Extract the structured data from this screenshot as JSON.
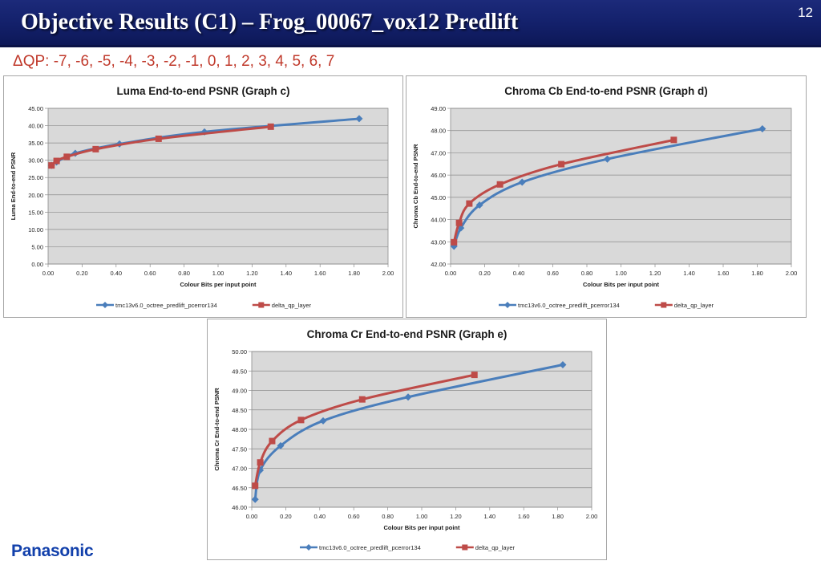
{
  "slide": {
    "title": "Objective Results (C1) – Frog_00067_vox12 Predlift",
    "number": "12",
    "subtitle": "ΔQP: -7, -6, -5, -4, -3, -2, -1, 0, 1, 2, 3, 4, 5, 6, 7",
    "logo": "Panasonic"
  },
  "colors": {
    "series1": "#4a7ebb",
    "series2": "#be4b48",
    "plot_bg": "#d9d9d9",
    "title_bar": "#13206a",
    "subtitle": "#c0392b",
    "logo": "#1240ab"
  },
  "chart_data": [
    {
      "type": "line",
      "title": "Luma End-to-end PSNR (Graph c)",
      "xlabel": "Colour  Bits per input point",
      "ylabel": "Luma End-to-end PSNR",
      "xlim": [
        0,
        2
      ],
      "ylim": [
        0,
        45
      ],
      "x_ticks": [
        "0.00",
        "0.20",
        "0.40",
        "0.60",
        "0.80",
        "1.00",
        "1.20",
        "1.40",
        "1.60",
        "1.80",
        "2.00"
      ],
      "y_ticks": [
        "0.00",
        "5.00",
        "10.00",
        "15.00",
        "20.00",
        "25.00",
        "30.00",
        "35.00",
        "40.00",
        "45.00"
      ],
      "grid": true,
      "legend": "bottom",
      "series": [
        {
          "name": "tmc13v6.0_octree_predlift_pcerror134",
          "color": "#4a7ebb",
          "marker": "diamond",
          "x": [
            0.02,
            0.05,
            0.16,
            0.42,
            0.92,
            1.83
          ],
          "y": [
            28.5,
            29.5,
            32.0,
            34.7,
            38.2,
            42.0
          ]
        },
        {
          "name": "delta_qp_layer",
          "color": "#be4b48",
          "marker": "square",
          "x": [
            0.02,
            0.05,
            0.11,
            0.28,
            0.65,
            1.31
          ],
          "y": [
            28.5,
            29.8,
            31.0,
            33.2,
            36.2,
            39.7
          ]
        }
      ]
    },
    {
      "type": "line",
      "title": "Chroma Cb End-to-end PSNR (Graph d)",
      "xlabel": "Colour  Bits per input point",
      "ylabel": "Chroma Cb End-to-end PSNR",
      "xlim": [
        0,
        2
      ],
      "ylim": [
        42,
        49
      ],
      "x_ticks": [
        "0.00",
        "0.20",
        "0.40",
        "0.60",
        "0.80",
        "1.00",
        "1.20",
        "1.40",
        "1.60",
        "1.80",
        "2.00"
      ],
      "y_ticks": [
        "42.00",
        "43.00",
        "44.00",
        "45.00",
        "46.00",
        "47.00",
        "48.00",
        "49.00"
      ],
      "grid": true,
      "legend": "bottom",
      "series": [
        {
          "name": "tmc13v6.0_octree_predlift_pcerror134",
          "color": "#4a7ebb",
          "marker": "diamond",
          "x": [
            0.02,
            0.06,
            0.17,
            0.42,
            0.92,
            1.83
          ],
          "y": [
            42.8,
            43.62,
            44.65,
            45.68,
            46.72,
            48.08
          ]
        },
        {
          "name": "delta_qp_layer",
          "color": "#be4b48",
          "marker": "square",
          "x": [
            0.02,
            0.05,
            0.11,
            0.29,
            0.65,
            1.31
          ],
          "y": [
            42.98,
            43.85,
            44.72,
            45.58,
            46.49,
            47.58
          ]
        }
      ]
    },
    {
      "type": "line",
      "title": "Chroma Cr End-to-end PSNR (Graph e)",
      "xlabel": "Colour  Bits per input point",
      "ylabel": "Chroma Cr End-to-end PSNR",
      "xlim": [
        0,
        2
      ],
      "ylim": [
        46,
        50
      ],
      "x_ticks": [
        "0.00",
        "0.20",
        "0.40",
        "0.60",
        "0.80",
        "1.00",
        "1.20",
        "1.40",
        "1.60",
        "1.80",
        "2.00"
      ],
      "y_ticks": [
        "46.00",
        "46.50",
        "47.00",
        "47.50",
        "48.00",
        "48.50",
        "49.00",
        "49.50",
        "50.00"
      ],
      "grid": true,
      "legend": "bottom",
      "series": [
        {
          "name": "tmc13v6.0_octree_predlift_pcerror134",
          "color": "#4a7ebb",
          "marker": "diamond",
          "x": [
            0.02,
            0.05,
            0.17,
            0.42,
            0.92,
            1.83
          ],
          "y": [
            46.2,
            46.95,
            47.58,
            48.22,
            48.83,
            49.66
          ]
        },
        {
          "name": "delta_qp_layer",
          "color": "#be4b48",
          "marker": "square",
          "x": [
            0.02,
            0.05,
            0.12,
            0.29,
            0.65,
            1.31
          ],
          "y": [
            46.55,
            47.15,
            47.7,
            48.24,
            48.77,
            49.4
          ]
        }
      ]
    }
  ]
}
